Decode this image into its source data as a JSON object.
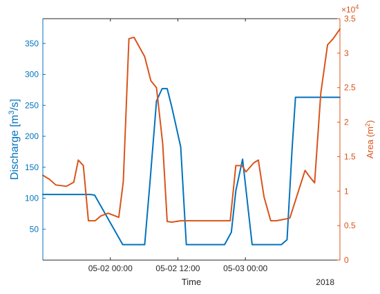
{
  "chart_data": {
    "type": "line",
    "xlabel": "Time",
    "x_tick_labels": [
      "05-02 00:00",
      "05-02 12:00",
      "05-03 00:00"
    ],
    "x_tick_hours": [
      12,
      24,
      36
    ],
    "x_secondary_label": "2018",
    "xlim_hours": [
      0,
      52.8
    ],
    "left_axis": {
      "label_prefix": "Discharge [m",
      "label_sup": "3",
      "label_suffix": "/s]",
      "ylim": [
        0,
        390
      ],
      "ticks": [
        50,
        100,
        150,
        200,
        250,
        300,
        350
      ],
      "color": "#0072BD"
    },
    "right_axis": {
      "label_prefix": "Area (m",
      "label_sup": "2",
      "label_suffix": ")",
      "ylim": [
        0,
        3.5
      ],
      "ticks": [
        0,
        0.5,
        1,
        1.5,
        2,
        2.5,
        3,
        3.5
      ],
      "tick_labels": [
        "0",
        "0.5",
        "1",
        "1.5",
        "2",
        "2.5",
        "3",
        "3.5"
      ],
      "multiplier_base": "×10",
      "multiplier_exp": "4",
      "color": "#D95319"
    },
    "series": [
      {
        "axis": "left",
        "color": "#0072BD",
        "x_hours": [
          0,
          3,
          7.5,
          8.4,
          9.2,
          14.2,
          15.3,
          17.1,
          18.1,
          19,
          20.2,
          21.2,
          22.1,
          22.9,
          24.5,
          25.5,
          32.3,
          33.5,
          34.3,
          35.5,
          37.2,
          38.4,
          39.8,
          41.1,
          42.4,
          43.4,
          44.3,
          44.9,
          51.5,
          52.8
        ],
        "values": [
          106,
          106,
          106,
          106,
          105,
          25,
          25,
          25,
          25,
          121,
          257,
          277,
          277,
          248,
          183,
          25,
          25,
          45,
          112,
          163,
          25,
          25,
          25,
          25,
          25,
          33,
          180,
          263,
          263,
          263
        ]
      },
      {
        "axis": "right",
        "color": "#D95319",
        "x_hours": [
          0,
          1.2,
          2.3,
          4.2,
          5.5,
          6.3,
          7.2,
          8.1,
          9.3,
          10.3,
          11.6,
          13.5,
          14.3,
          15.3,
          16.2,
          18.1,
          19.2,
          20.2,
          21.3,
          22.1,
          22.9,
          24.5,
          25.5,
          31.6,
          32.4,
          33.3,
          34.3,
          35.4,
          36.1,
          37.5,
          38.3,
          39.3,
          40.5,
          41.5,
          42.8,
          43.9,
          46.6,
          47.4,
          48.3,
          49.4,
          50.6,
          51.6,
          52.8
        ],
        "values": [
          1.23,
          1.17,
          1.09,
          1.07,
          1.13,
          1.45,
          1.37,
          0.57,
          0.57,
          0.64,
          0.68,
          0.62,
          1.14,
          3.21,
          3.23,
          2.95,
          2.6,
          2.5,
          1.69,
          0.56,
          0.55,
          0.57,
          0.57,
          0.57,
          0.57,
          0.57,
          1.37,
          1.37,
          1.28,
          1.41,
          1.45,
          0.92,
          0.57,
          0.57,
          0.59,
          0.61,
          1.3,
          1.21,
          1.12,
          2.42,
          3.12,
          3.21,
          3.35
        ]
      }
    ]
  }
}
